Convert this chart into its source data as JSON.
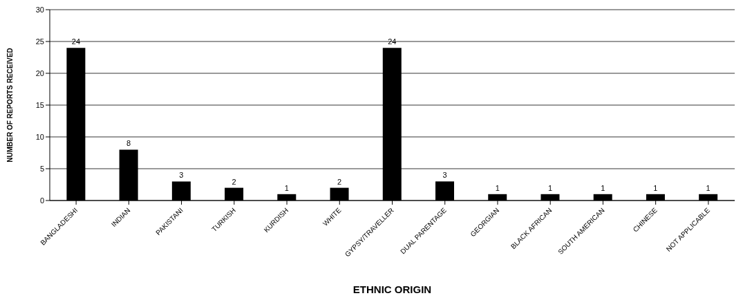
{
  "chart_data": {
    "type": "bar",
    "xlabel": "ETHNIC ORIGIN",
    "ylabel": "NUMBER OF REPORTS RECEIVED",
    "categories": [
      "BANGLADESHI",
      "INDIAN",
      "PAKISTANI",
      "TURKISH",
      "KURDISH",
      "WHITE",
      "GYPSY/TRAVELLER",
      "DUAL PARENTAGE",
      "GEORGIAN",
      "BLACK AFRICAN",
      "SOUTH AMERICAN",
      "CHINESE",
      "NOT APPLICABLE"
    ],
    "values": [
      24,
      8,
      3,
      2,
      1,
      2,
      24,
      3,
      1,
      1,
      1,
      1,
      1
    ],
    "color": "#000000",
    "ylim": [
      0,
      30
    ],
    "yticks": [
      0,
      5,
      10,
      15,
      20,
      25,
      30
    ],
    "grid": "y",
    "data_labels": true
  }
}
